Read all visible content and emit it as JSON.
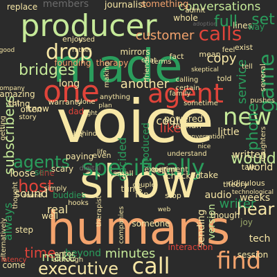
{
  "palette": {
    "background": "#2b2b2b",
    "cream": "#f7e7a6",
    "green": "#2a9d5c",
    "peach": "#f3a36d",
    "red": "#e0443a",
    "pale_green": "#c6ea99",
    "olive": "#9aa86a",
    "dark_red": "#a83232",
    "gray": "#6b6b6b"
  },
  "words": [
    {
      "text": "voice",
      "color": "cream"
    },
    {
      "text": "show",
      "color": "cream"
    },
    {
      "text": "humans",
      "color": "peach"
    },
    {
      "text": "made",
      "color": "green"
    },
    {
      "text": "producer",
      "color": "pale_green"
    },
    {
      "text": "agent",
      "color": "red"
    },
    {
      "text": "one",
      "color": "red"
    },
    {
      "text": "drop",
      "color": "cream"
    },
    {
      "text": "bridges",
      "color": "pale_green"
    },
    {
      "text": "new",
      "color": "pale_green"
    },
    {
      "text": "game",
      "color": "green"
    },
    {
      "text": "phone",
      "color": "green"
    },
    {
      "text": "specifically",
      "color": "green"
    },
    {
      "text": "agents",
      "color": "green"
    },
    {
      "text": "host",
      "color": "red"
    },
    {
      "text": "find",
      "color": "peach"
    },
    {
      "text": "call",
      "color": "cream"
    },
    {
      "text": "executive",
      "color": "cream"
    },
    {
      "text": "calls",
      "color": "red"
    },
    {
      "text": "customer",
      "color": "peach"
    },
    {
      "text": "conversations",
      "color": "pale_green"
    },
    {
      "text": "full",
      "color": "green"
    },
    {
      "text": "set",
      "color": "green"
    },
    {
      "text": "would",
      "color": "pale_green"
    },
    {
      "text": "hear",
      "color": "cream"
    },
    {
      "text": "writer",
      "color": "green"
    },
    {
      "text": "subscribers",
      "color": "pale_green"
    },
    {
      "text": "service",
      "color": "green"
    },
    {
      "text": "another",
      "color": "cream"
    },
    {
      "text": "like",
      "color": "red"
    },
    {
      "text": "could",
      "color": "cream"
    },
    {
      "text": "decided",
      "color": "green"
    },
    {
      "text": "produced",
      "color": "green"
    },
    {
      "text": "time",
      "color": "red"
    },
    {
      "text": "make",
      "color": "pale_green"
    },
    {
      "text": "minutes",
      "color": "pale_green"
    },
    {
      "text": "sound",
      "color": "cream"
    },
    {
      "text": "loose",
      "color": "cream"
    },
    {
      "text": "always",
      "color": "green"
    },
    {
      "text": "real",
      "color": "cream"
    },
    {
      "text": "version",
      "color": "pale_green"
    },
    {
      "text": "sending",
      "color": "cream"
    },
    {
      "text": "written",
      "color": "cream"
    },
    {
      "text": "copy",
      "color": "cream"
    },
    {
      "text": "journalist",
      "color": "cream"
    },
    {
      "text": "something",
      "color": "peach"
    },
    {
      "text": "members",
      "color": "gray"
    },
    {
      "text": "replace",
      "color": "cream"
    },
    {
      "text": "founding",
      "color": "peach"
    },
    {
      "text": "therapy",
      "color": "peach"
    },
    {
      "text": "long",
      "color": "cream"
    },
    {
      "text": "amazing",
      "color": "cream"
    },
    {
      "text": "powered",
      "color": "cream"
    },
    {
      "text": "human",
      "color": "cream"
    },
    {
      "text": "little",
      "color": "cream"
    },
    {
      "text": "turns",
      "color": "cream"
    },
    {
      "text": "experiment",
      "color": "cream"
    },
    {
      "text": "sent",
      "color": "green"
    },
    {
      "text": "buddies",
      "color": "green"
    },
    {
      "text": "tech",
      "color": "cream"
    },
    {
      "text": "world",
      "color": "cream"
    },
    {
      "text": "weeks",
      "color": "cream"
    },
    {
      "text": "session",
      "color": "cream"
    },
    {
      "text": "come",
      "color": "cream"
    },
    {
      "text": "beyond",
      "color": "green"
    },
    {
      "text": "step",
      "color": "cream"
    },
    {
      "text": "audio",
      "color": "cream"
    },
    {
      "text": "though",
      "color": "cream"
    },
    {
      "text": "joy",
      "color": "olive"
    },
    {
      "text": "checked",
      "color": "cream"
    },
    {
      "text": "thing",
      "color": "cream"
    },
    {
      "text": "know",
      "color": "cream"
    },
    {
      "text": "paying",
      "color": "cream"
    },
    {
      "text": "digital",
      "color": "gray"
    },
    {
      "text": "line",
      "color": "dark_red"
    },
    {
      "text": "take",
      "color": "cream"
    },
    {
      "text": "fun",
      "color": "cream"
    },
    {
      "text": "couple",
      "color": "cream"
    },
    {
      "text": "well",
      "color": "cream"
    },
    {
      "text": "someone",
      "color": "cream"
    },
    {
      "text": "interaction",
      "color": "red"
    },
    {
      "text": "lines",
      "color": "cream"
    },
    {
      "text": "way",
      "color": "green"
    },
    {
      "text": "whole",
      "color": "cream"
    },
    {
      "text": "mirrors",
      "color": "cream"
    },
    {
      "text": "cut",
      "color": "cream"
    },
    {
      "text": "enjoy",
      "color": "cream"
    },
    {
      "text": "admit",
      "color": "cream"
    },
    {
      "text": "adoption",
      "color": "gray"
    },
    {
      "text": "terms",
      "color": "cream"
    },
    {
      "text": "friends",
      "color": "cream"
    },
    {
      "text": "fact",
      "color": "cream"
    },
    {
      "text": "scary",
      "color": "cream"
    },
    {
      "text": "warranty",
      "color": "cream"
    },
    {
      "text": "family",
      "color": "cream"
    },
    {
      "text": "dad",
      "color": "red"
    },
    {
      "text": "clone",
      "color": "cream"
    },
    {
      "text": "even",
      "color": "cream"
    },
    {
      "text": "small",
      "color": "cream"
    },
    {
      "text": "content",
      "color": "cream"
    },
    {
      "text": "ridiculous",
      "color": "cream"
    },
    {
      "text": "technological",
      "color": "cream"
    },
    {
      "text": "companies",
      "color": "cream"
    },
    {
      "text": "therapist",
      "color": "cream"
    },
    {
      "text": "hooks",
      "color": "cream"
    },
    {
      "text": "theory",
      "color": "cream"
    },
    {
      "text": "half",
      "color": "cream"
    },
    {
      "text": "stop",
      "color": "cream"
    },
    {
      "text": "often",
      "color": "cream"
    },
    {
      "text": "several",
      "color": "cream"
    },
    {
      "text": "talk",
      "color": "cream"
    },
    {
      "text": "chat",
      "color": "cream"
    },
    {
      "text": "exist",
      "color": "cream"
    },
    {
      "text": "daughters",
      "color": "cream"
    },
    {
      "text": "mean",
      "color": "cream"
    },
    {
      "text": "told",
      "color": "cream"
    },
    {
      "text": "getting",
      "color": "cream"
    },
    {
      "text": "enter",
      "color": "cream"
    },
    {
      "text": "although",
      "color": "cream"
    },
    {
      "text": "alternatively",
      "color": "cream"
    },
    {
      "text": "latency",
      "color": "red"
    },
    {
      "text": "calling",
      "color": "cream"
    },
    {
      "text": "sometime",
      "color": "cream"
    },
    {
      "text": "simply",
      "color": "cream"
    },
    {
      "text": "story",
      "color": "cream"
    },
    {
      "text": "thought",
      "color": "cream"
    },
    {
      "text": "last",
      "color": "cream"
    },
    {
      "text": "behind",
      "color": "cream"
    },
    {
      "text": "certain",
      "color": "cream"
    },
    {
      "text": "pushes",
      "color": "cream"
    },
    {
      "text": "anything",
      "color": "cream"
    },
    {
      "text": "understand",
      "color": "cream"
    },
    {
      "text": "conversation",
      "color": "cream"
    },
    {
      "text": "feel",
      "color": "cream"
    },
    {
      "text": "tell",
      "color": "cream"
    },
    {
      "text": "used",
      "color": "cream"
    },
    {
      "text": "good",
      "color": "cream"
    },
    {
      "text": "company",
      "color": "cream"
    },
    {
      "text": "skeptical",
      "color": "cream"
    },
    {
      "text": "making",
      "color": "cream"
    },
    {
      "text": "nice",
      "color": "cream"
    },
    {
      "text": "right",
      "color": "cream"
    },
    {
      "text": "sound",
      "color": "cream"
    },
    {
      "text": "life",
      "color": "cream"
    },
    {
      "text": "plan",
      "color": "cream"
    },
    {
      "text": "rather",
      "color": "cream"
    },
    {
      "text": "web",
      "color": "cream"
    }
  ]
}
